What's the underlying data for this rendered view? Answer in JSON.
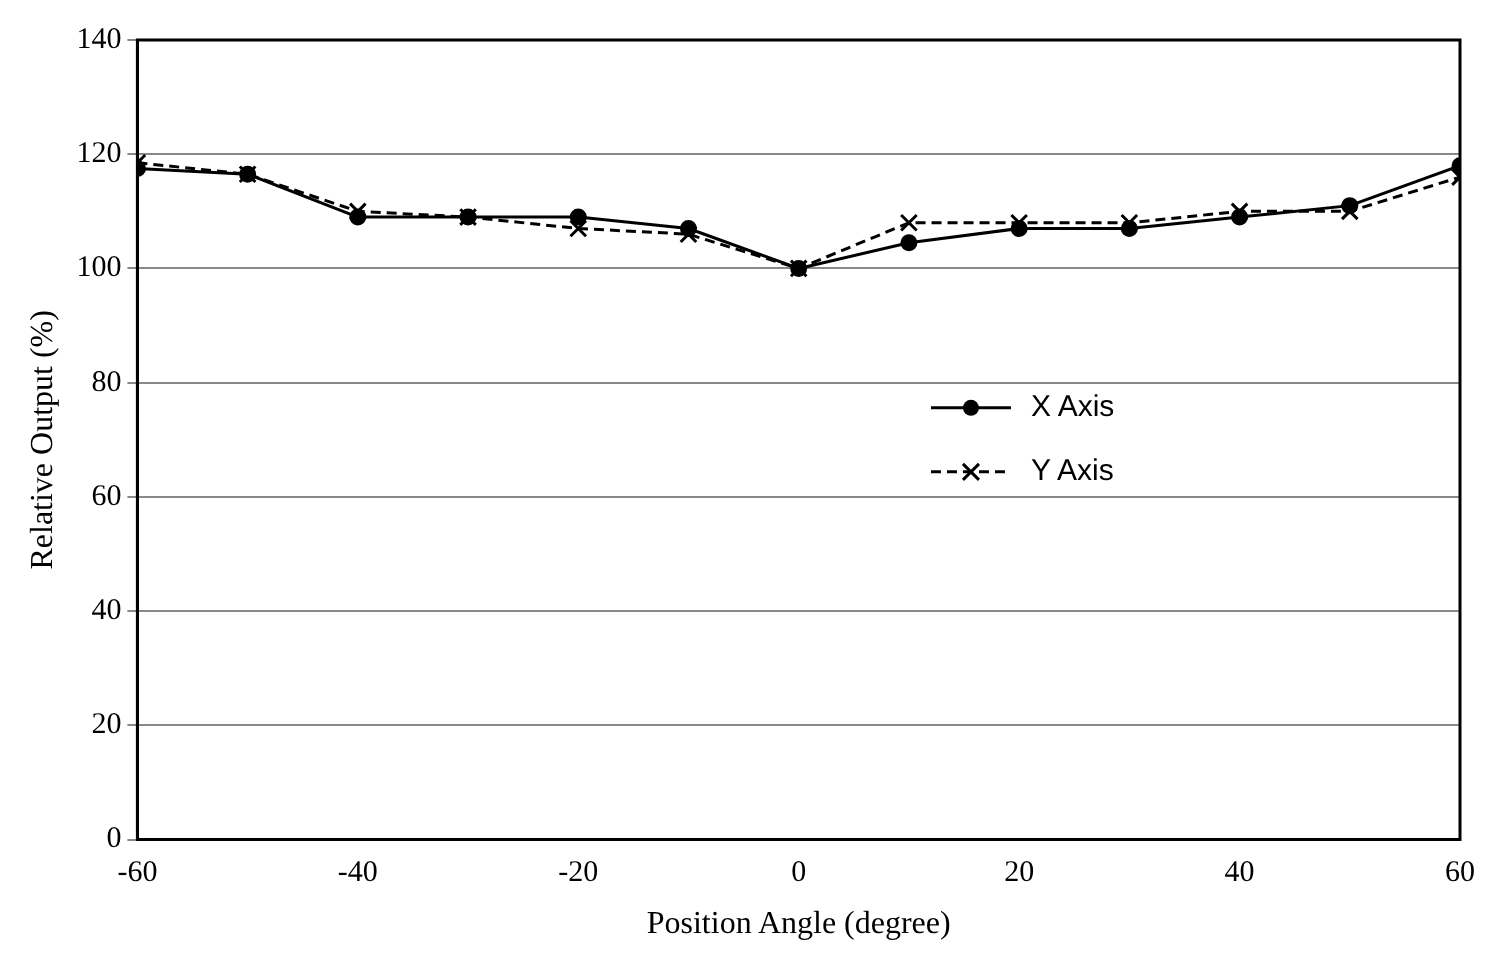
{
  "chart_data": {
    "type": "line",
    "xlabel": "Position Angle (degree)",
    "ylabel": "Relative Output (%)",
    "x": [
      -60,
      -50,
      -40,
      -30,
      -20,
      -10,
      0,
      10,
      20,
      30,
      40,
      50,
      60
    ],
    "xlim": [
      -60,
      60
    ],
    "xticks": [
      -60,
      -40,
      -20,
      0,
      20,
      40,
      60
    ],
    "ylim": [
      0,
      140
    ],
    "yticks": [
      0,
      20,
      40,
      60,
      80,
      100,
      120,
      140
    ],
    "grid": "y",
    "legend": "right",
    "series": [
      {
        "name": "X Axis",
        "color": "#000000",
        "marker": "circle",
        "line_style": "solid",
        "values": [
          117.5,
          116.5,
          109,
          109,
          109,
          107,
          100,
          104.5,
          107,
          107,
          109,
          111,
          118
        ]
      },
      {
        "name": "Y Axis",
        "color": "#000000",
        "marker": "cross",
        "line_style": "dashed",
        "values": [
          118.5,
          116.5,
          110,
          109,
          107,
          106,
          100,
          108,
          108,
          108,
          110,
          110,
          116
        ]
      }
    ]
  }
}
